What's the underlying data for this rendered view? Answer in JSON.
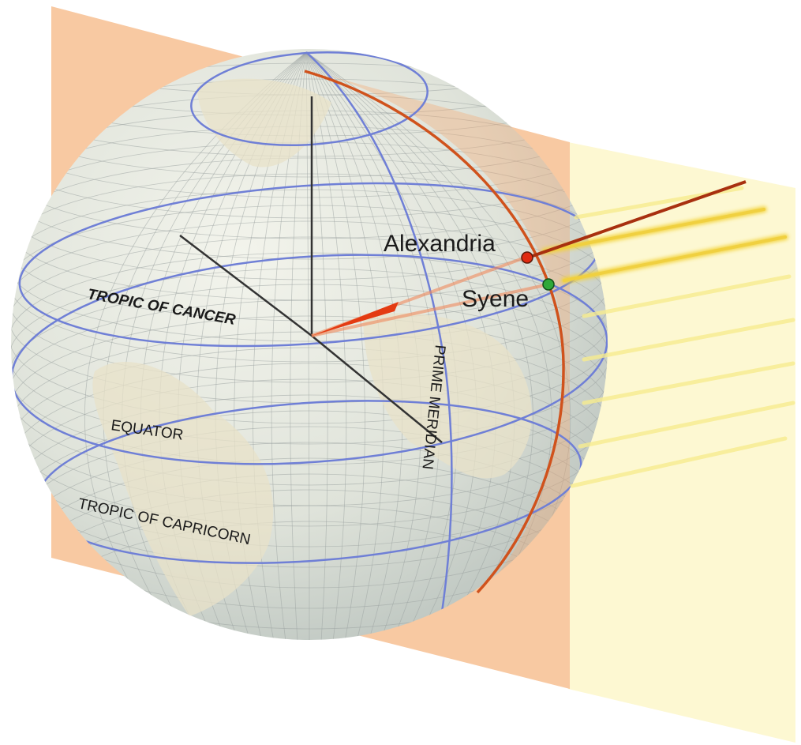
{
  "labels": [
    "Alexandria",
    "Syene",
    "TROPIC OF CANCER",
    "EQUATOR",
    "TROPIC OF CAPRICORN",
    "PRIME MERIDIAN"
  ]
}
